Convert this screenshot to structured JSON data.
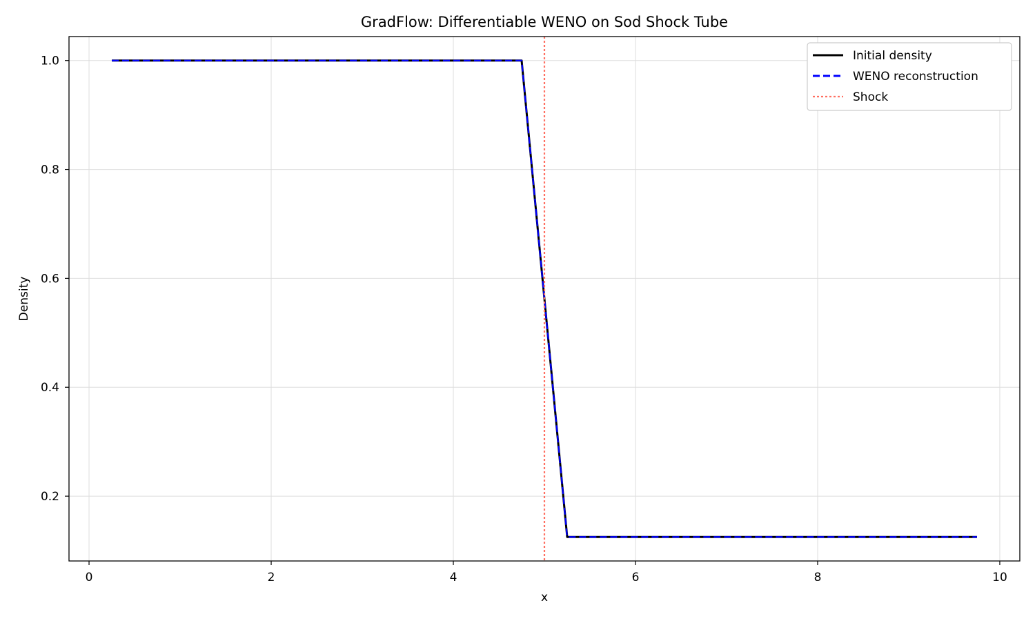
{
  "chart_data": {
    "type": "line",
    "title": "GradFlow: Differentiable WENO on Sod Shock Tube",
    "xlabel": "x",
    "ylabel": "Density",
    "xlim": [
      -0.22,
      10.22
    ],
    "ylim": [
      0.081,
      1.044
    ],
    "xticks": [
      0,
      2,
      4,
      6,
      8,
      10
    ],
    "yticks": [
      0.2,
      0.4,
      0.6,
      0.8,
      1.0
    ],
    "xtick_labels": [
      "0",
      "2",
      "4",
      "6",
      "8",
      "10"
    ],
    "ytick_labels": [
      "0.2",
      "0.4",
      "0.6",
      "0.8",
      "1.0"
    ],
    "grid": true,
    "legend_position": "top-right",
    "series": [
      {
        "name": "Initial density",
        "color": "#000000",
        "style": "solid",
        "x": [
          0.25,
          4.75,
          5.25,
          9.75
        ],
        "y": [
          1.0,
          1.0,
          0.125,
          0.125
        ]
      },
      {
        "name": "WENO reconstruction",
        "color": "#0000ff",
        "style": "dashed",
        "x": [
          0.25,
          4.75,
          5.25,
          9.75
        ],
        "y": [
          1.0,
          1.0,
          0.125,
          0.125
        ]
      }
    ],
    "vlines": [
      {
        "name": "Shock",
        "x": 5.0,
        "color": "#ff6f61",
        "style": "dotted"
      }
    ]
  }
}
